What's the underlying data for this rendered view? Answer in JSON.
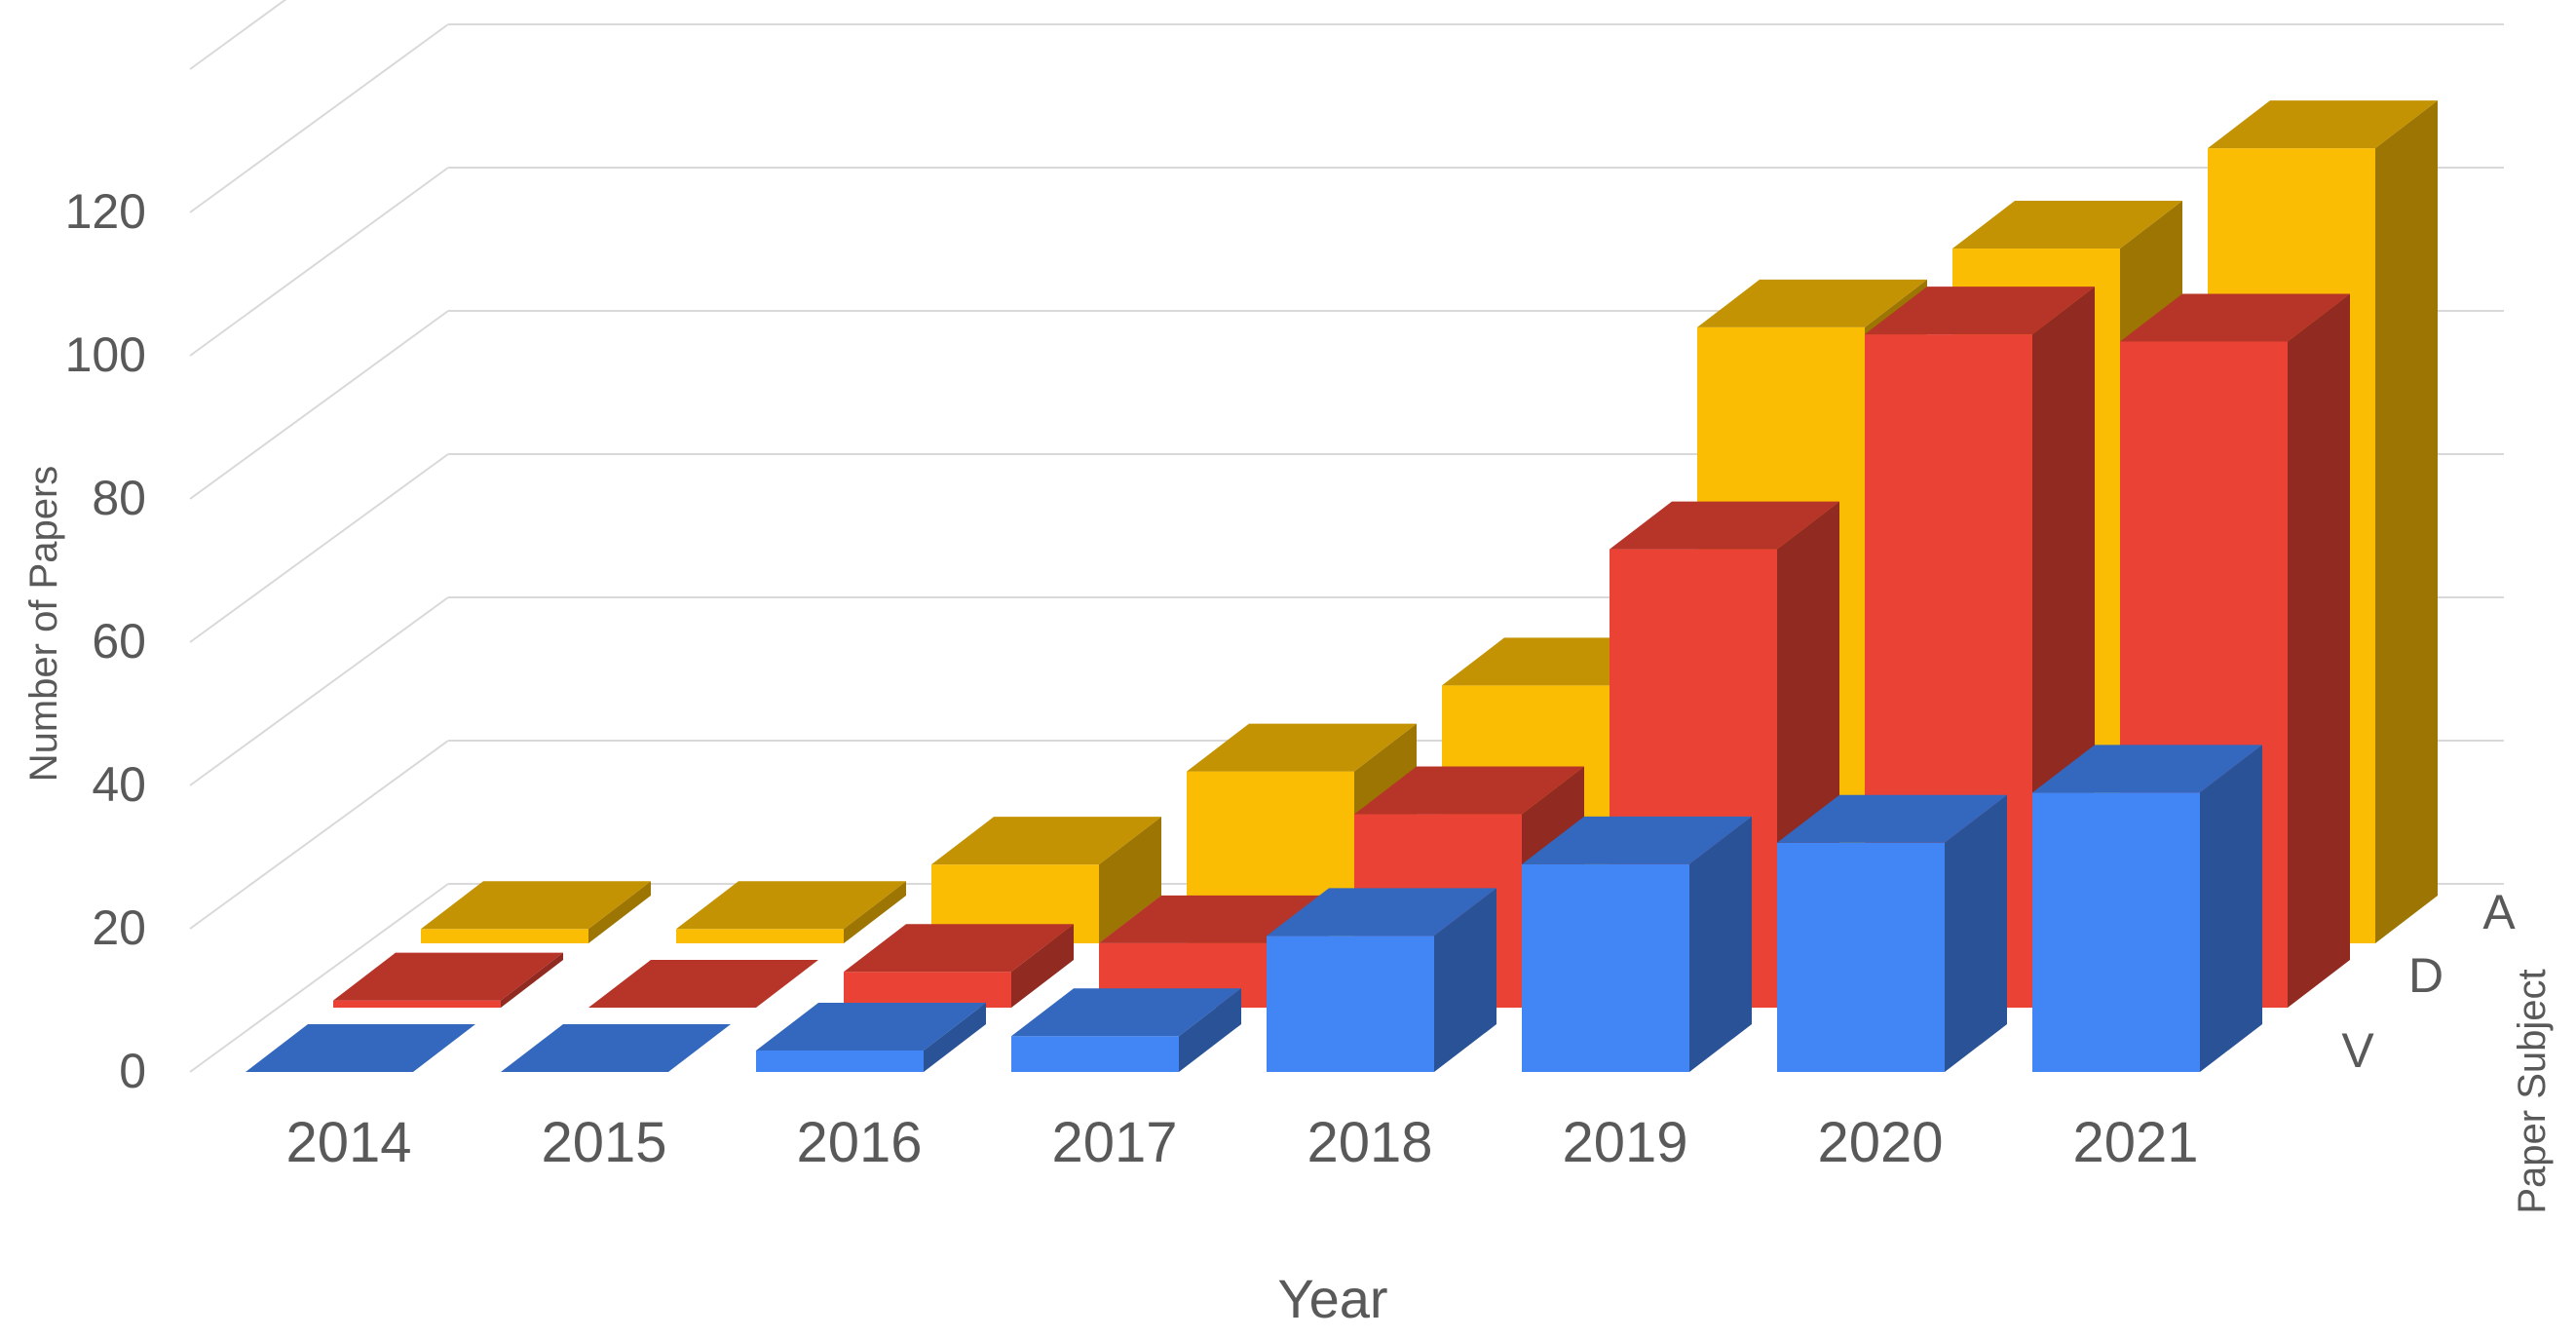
{
  "chart_data": {
    "type": "bar",
    "variant": "3d-clustered-depth",
    "categories": [
      "2014",
      "2015",
      "2016",
      "2017",
      "2018",
      "2019",
      "2020",
      "2021"
    ],
    "series": [
      {
        "name": "V",
        "values": [
          0,
          0,
          3,
          5,
          19,
          29,
          32,
          39
        ],
        "color": "#4285F4"
      },
      {
        "name": "D",
        "values": [
          1,
          0,
          5,
          9,
          27,
          64,
          94,
          93
        ],
        "color": "#EA4335"
      },
      {
        "name": "A",
        "values": [
          2,
          2,
          11,
          24,
          36,
          86,
          97,
          111
        ],
        "color": "#FBBC04"
      }
    ],
    "title": "",
    "xlabel": "Year",
    "ylabel": "Number of Papers",
    "zlabel": "Paper Subject",
    "y_ticks": [
      "0",
      "20",
      "40",
      "60",
      "80",
      "100",
      "120"
    ],
    "ylim": [
      0,
      140
    ],
    "grid": true
  }
}
